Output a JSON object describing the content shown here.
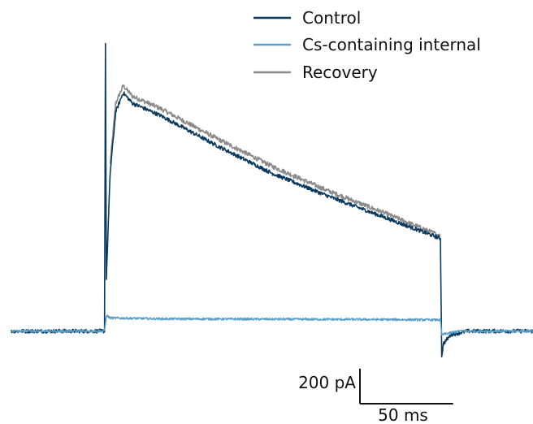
{
  "chart_data": {
    "type": "line",
    "title": "",
    "xlabel": "",
    "ylabel": "",
    "x_unit": "ms",
    "y_unit": "pA",
    "xlim": [
      -50,
      230
    ],
    "ylim": [
      -150,
      1750
    ],
    "step_on_ms": 0,
    "step_off_ms": 180,
    "legend": {
      "position": "top-right"
    },
    "series": [
      {
        "name": "Control",
        "color": "#0b3a5e",
        "points": [
          [
            -50,
            0
          ],
          [
            0,
            0
          ],
          [
            0.5,
            1650
          ],
          [
            1,
            300
          ],
          [
            3,
            900
          ],
          [
            6,
            1250
          ],
          [
            10,
            1360
          ],
          [
            15,
            1300
          ],
          [
            30,
            1230
          ],
          [
            60,
            1060
          ],
          [
            90,
            900
          ],
          [
            120,
            770
          ],
          [
            150,
            650
          ],
          [
            180,
            530
          ],
          [
            180.3,
            530
          ],
          [
            181,
            -140
          ],
          [
            182,
            -70
          ],
          [
            186,
            -20
          ],
          [
            195,
            0
          ],
          [
            230,
            0
          ]
        ]
      },
      {
        "name": "Cs-containing internal",
        "color": "#5aa0c8",
        "points": [
          [
            -50,
            0
          ],
          [
            0,
            0
          ],
          [
            1,
            90
          ],
          [
            3,
            75
          ],
          [
            30,
            70
          ],
          [
            90,
            68
          ],
          [
            150,
            66
          ],
          [
            180,
            64
          ],
          [
            180.3,
            64
          ],
          [
            181,
            -20
          ],
          [
            190,
            0
          ],
          [
            230,
            0
          ]
        ]
      },
      {
        "name": "Recovery",
        "color": "#8a8a8a",
        "points": [
          [
            3,
            950
          ],
          [
            6,
            1300
          ],
          [
            10,
            1400
          ],
          [
            15,
            1340
          ],
          [
            30,
            1270
          ],
          [
            60,
            1100
          ],
          [
            90,
            940
          ],
          [
            120,
            800
          ],
          [
            150,
            675
          ],
          [
            180,
            545
          ]
        ]
      }
    ],
    "scale_bar": {
      "y_value": 200,
      "y_label": "200 pA",
      "x_value": 50,
      "x_label": "50 ms"
    }
  }
}
